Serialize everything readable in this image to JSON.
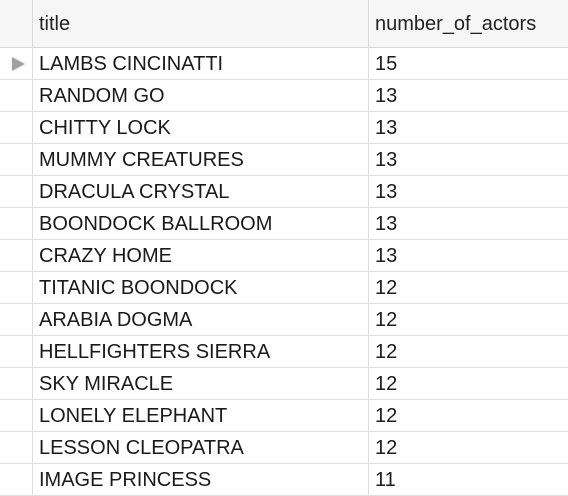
{
  "columns": {
    "title": "title",
    "count": "number_of_actors"
  },
  "rows": [
    {
      "title": "LAMBS CINCINATTI",
      "count": "15"
    },
    {
      "title": "RANDOM GO",
      "count": "13"
    },
    {
      "title": "CHITTY LOCK",
      "count": "13"
    },
    {
      "title": "MUMMY CREATURES",
      "count": "13"
    },
    {
      "title": "DRACULA CRYSTAL",
      "count": "13"
    },
    {
      "title": "BOONDOCK BALLROOM",
      "count": "13"
    },
    {
      "title": "CRAZY HOME",
      "count": "13"
    },
    {
      "title": "TITANIC BOONDOCK",
      "count": "12"
    },
    {
      "title": "ARABIA DOGMA",
      "count": "12"
    },
    {
      "title": "HELLFIGHTERS SIERRA",
      "count": "12"
    },
    {
      "title": "SKY MIRACLE",
      "count": "12"
    },
    {
      "title": "LONELY ELEPHANT",
      "count": "12"
    },
    {
      "title": "LESSON CLEOPATRA",
      "count": "12"
    },
    {
      "title": "IMAGE PRINCESS",
      "count": "11"
    }
  ],
  "selected_row_index": 0,
  "icons": {
    "row_marker": "current-row-indicator-icon"
  }
}
